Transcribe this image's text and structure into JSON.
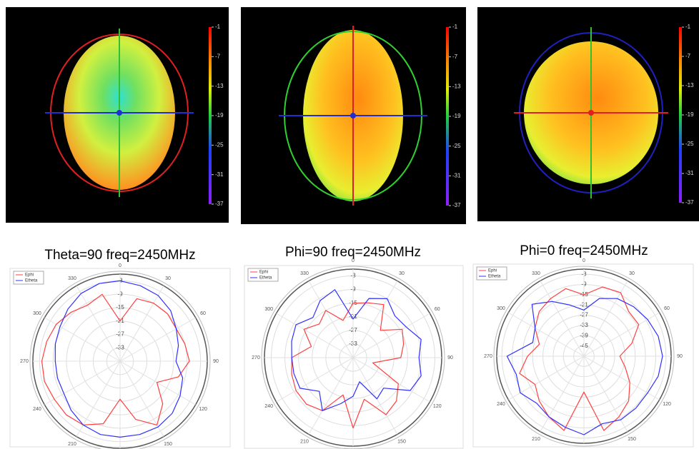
{
  "chart_data": [
    {
      "type": "pattern3d",
      "colorbar_ticks": [
        -1,
        -7,
        -13,
        -19,
        -25,
        -31,
        -37
      ],
      "ring_color": "#e02020",
      "v_axis_color": "#30c030",
      "h_axis_color": "#2030d0"
    },
    {
      "type": "pattern3d",
      "colorbar_ticks": [
        -1,
        -7,
        -13,
        -19,
        -25,
        -31,
        -37
      ],
      "ring_color": "#30d030",
      "v_axis_color": "#e02020",
      "h_axis_color": "#2030d0"
    },
    {
      "type": "pattern3d",
      "colorbar_ticks": [
        -1,
        -7,
        -13,
        -19,
        -25,
        -31,
        -37
      ],
      "ring_color": "#2020c0",
      "v_axis_color": "#30c030",
      "h_axis_color": "#e02020"
    },
    {
      "type": "polar",
      "title": "Theta=90 freq=2450MHz",
      "thetaticks": [
        0,
        30,
        60,
        90,
        120,
        150,
        180,
        210,
        240,
        270,
        300,
        330
      ],
      "rlim": [
        -39,
        0
      ],
      "rticks": [
        -3,
        -9,
        -15,
        -21,
        -27,
        -33
      ],
      "x": [
        0,
        15,
        30,
        45,
        60,
        75,
        90,
        105,
        120,
        135,
        150,
        165,
        180,
        195,
        210,
        225,
        240,
        255,
        270,
        285,
        300,
        315,
        330,
        345
      ],
      "series": [
        {
          "name": "Ephi",
          "color": "#ff4040",
          "values": [
            -21,
            -10,
            -9,
            -9,
            -10,
            -9,
            -8,
            -12,
            -20,
            -12,
            -6,
            -12,
            -22,
            -10,
            -6,
            -5,
            -5,
            -4,
            -4,
            -5,
            -6,
            -8,
            -10,
            -8
          ]
        },
        {
          "name": "Etheta",
          "color": "#3030ff",
          "values": [
            -3,
            -4,
            -5,
            -7,
            -10,
            -12,
            -14,
            -10,
            -8,
            -6,
            -5,
            -5,
            -5,
            -5,
            -6,
            -8,
            -10,
            -10,
            -10,
            -9,
            -8,
            -6,
            -4,
            -3
          ]
        }
      ]
    },
    {
      "type": "polar",
      "title": "Phi=90 freq=2450MHz",
      "thetaticks": [
        0,
        30,
        60,
        90,
        120,
        150,
        180,
        210,
        240,
        270,
        300,
        330
      ],
      "rlim": [
        -39,
        0
      ],
      "rticks": [
        -3,
        -9,
        -15,
        -21,
        -27,
        -33
      ],
      "x": [
        0,
        15,
        30,
        45,
        60,
        75,
        90,
        105,
        120,
        135,
        150,
        165,
        180,
        195,
        210,
        225,
        240,
        255,
        270,
        285,
        300,
        315,
        330,
        345
      ],
      "series": [
        {
          "name": "Ephi",
          "color": "#ff4040",
          "values": [
            -15,
            -14,
            -12,
            -22,
            -14,
            -16,
            -18,
            -30,
            -16,
            -12,
            -10,
            -20,
            -8,
            -22,
            -12,
            -10,
            -10,
            -11,
            -12,
            -20,
            -14,
            -18,
            -15,
            -22
          ]
        },
        {
          "name": "Etheta",
          "color": "#3030ff",
          "values": [
            -22,
            -12,
            -9,
            -13,
            -12,
            -8,
            -10,
            -8,
            -10,
            -20,
            -18,
            -28,
            -22,
            -18,
            -12,
            -18,
            -12,
            -12,
            -12,
            -11,
            -10,
            -14,
            -10,
            -8
          ]
        }
      ]
    },
    {
      "type": "polar",
      "title": "Phi=0 freq=2450MHz",
      "thetaticks": [
        0,
        30,
        60,
        90,
        120,
        150,
        180,
        210,
        240,
        270,
        300,
        330
      ],
      "rlim": [
        -51,
        0
      ],
      "rticks": [
        -3,
        -9,
        -15,
        -21,
        -27,
        -33,
        -39,
        -45
      ],
      "x": [
        0,
        15,
        30,
        45,
        60,
        75,
        90,
        105,
        120,
        135,
        150,
        165,
        180,
        195,
        210,
        225,
        240,
        255,
        270,
        285,
        300,
        315,
        330,
        345
      ],
      "series": [
        {
          "name": "Ephi",
          "color": "#ff4040",
          "values": [
            -15,
            -9,
            -8,
            -14,
            -14,
            -22,
            -30,
            -26,
            -20,
            -14,
            -10,
            -6,
            -30,
            -6,
            -10,
            -14,
            -18,
            -12,
            -18,
            -24,
            -18,
            -14,
            -12,
            -10
          ]
        },
        {
          "name": "Etheta",
          "color": "#3030ff",
          "values": [
            -24,
            -16,
            -12,
            -10,
            -8,
            -6,
            -5,
            -6,
            -8,
            -8,
            -8,
            -10,
            -5,
            -8,
            -10,
            -12,
            -8,
            -10,
            -6,
            -20,
            -18,
            -8,
            -14,
            -20
          ]
        }
      ]
    }
  ]
}
